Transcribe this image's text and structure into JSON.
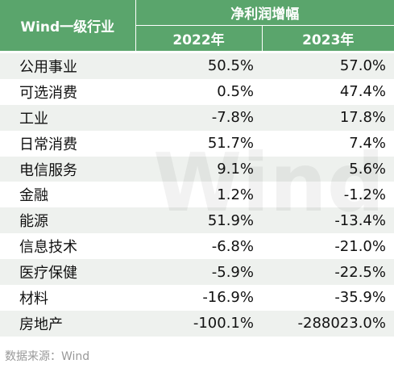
{
  "header": {
    "industry": "Wind一级行业",
    "group": "净利润增幅",
    "years": [
      "2022年",
      "2023年"
    ]
  },
  "table": {
    "rows": [
      [
        "公用事业",
        "50.5%",
        "57.0%"
      ],
      [
        "可选消费",
        "0.5%",
        "47.4%"
      ],
      [
        "工业",
        "-7.8%",
        "17.8%"
      ],
      [
        "日常消费",
        "51.7%",
        "7.4%"
      ],
      [
        "电信服务",
        "9.1%",
        "5.6%"
      ],
      [
        "金融",
        "1.2%",
        "-1.2%"
      ],
      [
        "能源",
        "51.9%",
        "-13.4%"
      ],
      [
        "信息技术",
        "-6.8%",
        "-21.0%"
      ],
      [
        "医疗保健",
        "-5.9%",
        "-22.5%"
      ],
      [
        "材料",
        "-16.9%",
        "-35.9%"
      ],
      [
        "房地产",
        "-100.1%",
        "-288023.0%"
      ]
    ]
  },
  "watermark": "Wind",
  "source": "数据来源：Wind"
}
